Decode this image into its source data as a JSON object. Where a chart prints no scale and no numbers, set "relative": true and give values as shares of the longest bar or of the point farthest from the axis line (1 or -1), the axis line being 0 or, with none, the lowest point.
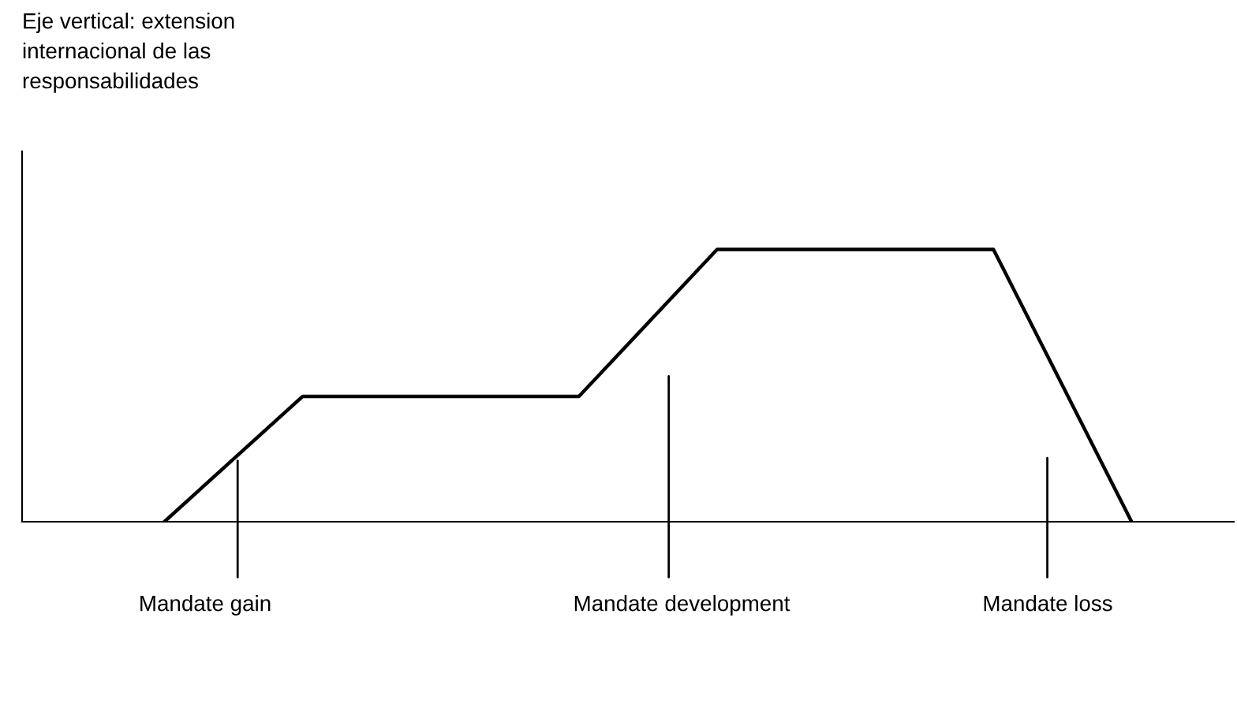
{
  "chart_data": {
    "type": "line",
    "relative": true,
    "categories": [
      null,
      null,
      null,
      null,
      null,
      null,
      null,
      null
    ],
    "series": [
      {
        "color": "#000000",
        "values": [
          0,
          0.46,
          0.46,
          0.46,
          1,
          1,
          1,
          0
        ]
      }
    ],
    "annotations": [
      "Eje vertical: extension\ninternacional de las\nresponsabilidades",
      "Mandate gain",
      "Mandate development",
      "Mandate loss"
    ],
    "marker": "none",
    "line_style": "solid",
    "grid": false,
    "legend": false
  }
}
